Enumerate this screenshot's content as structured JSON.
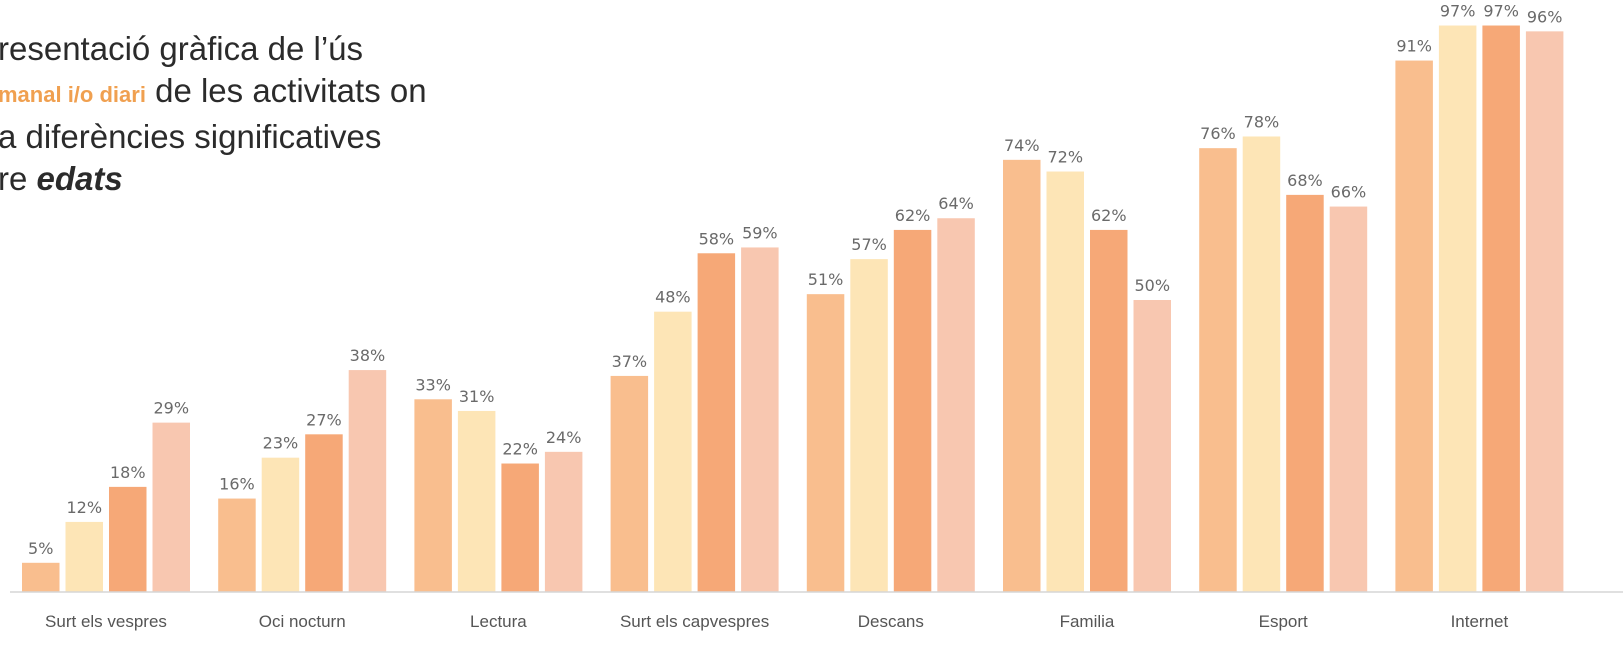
{
  "title": {
    "line1": "resentació gràfica de l’ús",
    "line2_highlight": "manal i/o diari",
    "line2_rest": " de les activitats on",
    "line3": "a diferències significatives",
    "line4_plain": "re ",
    "line4_emph": "edats"
  },
  "chart_data": {
    "type": "bar",
    "categories": [
      "Surt els vespres",
      "Oci nocturn",
      "Lectura",
      "Surt els capvespres",
      "Descans",
      "Familia",
      "Esport",
      "Internet"
    ],
    "series": [
      {
        "values": [
          5,
          16,
          33,
          37,
          51,
          74,
          76,
          91
        ]
      },
      {
        "values": [
          12,
          23,
          31,
          48,
          57,
          72,
          78,
          97
        ]
      },
      {
        "values": [
          18,
          27,
          22,
          58,
          62,
          62,
          68,
          97
        ]
      },
      {
        "values": [
          29,
          38,
          24,
          59,
          64,
          50,
          66,
          96
        ]
      }
    ],
    "value_suffix": "%",
    "ylim": [
      0,
      100
    ],
    "colors": [
      "#f9be8e",
      "#fde5b6",
      "#f6a877",
      "#f8c7b0"
    ],
    "grid": false,
    "legend": "none"
  }
}
